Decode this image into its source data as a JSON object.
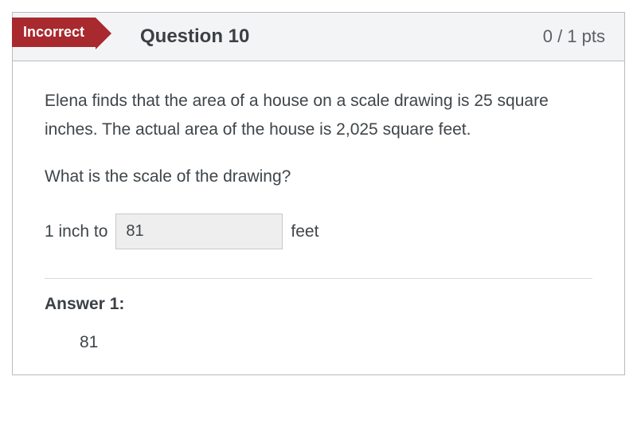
{
  "status": {
    "badge_text": "Incorrect",
    "badge_color": "#a8292e"
  },
  "header": {
    "title": "Question 10",
    "points": "0 / 1 pts"
  },
  "body": {
    "prompt": "Elena finds that the area of a house on a scale drawing is 25 square inches. The actual area of the house is 2,025 square feet.",
    "sub_prompt": "What is the scale of the drawing?",
    "answer_prefix": "1 inch to",
    "answer_value": "81",
    "answer_suffix": "feet"
  },
  "given_answer": {
    "label": "Answer 1:",
    "value": "81"
  },
  "colors": {
    "card_border": "#b8bdc2",
    "header_bg": "#f3f4f5",
    "text_primary": "#3b4045",
    "text_body": "#3f4549",
    "input_bg": "#eeeeee",
    "divider": "#d6d9db"
  }
}
